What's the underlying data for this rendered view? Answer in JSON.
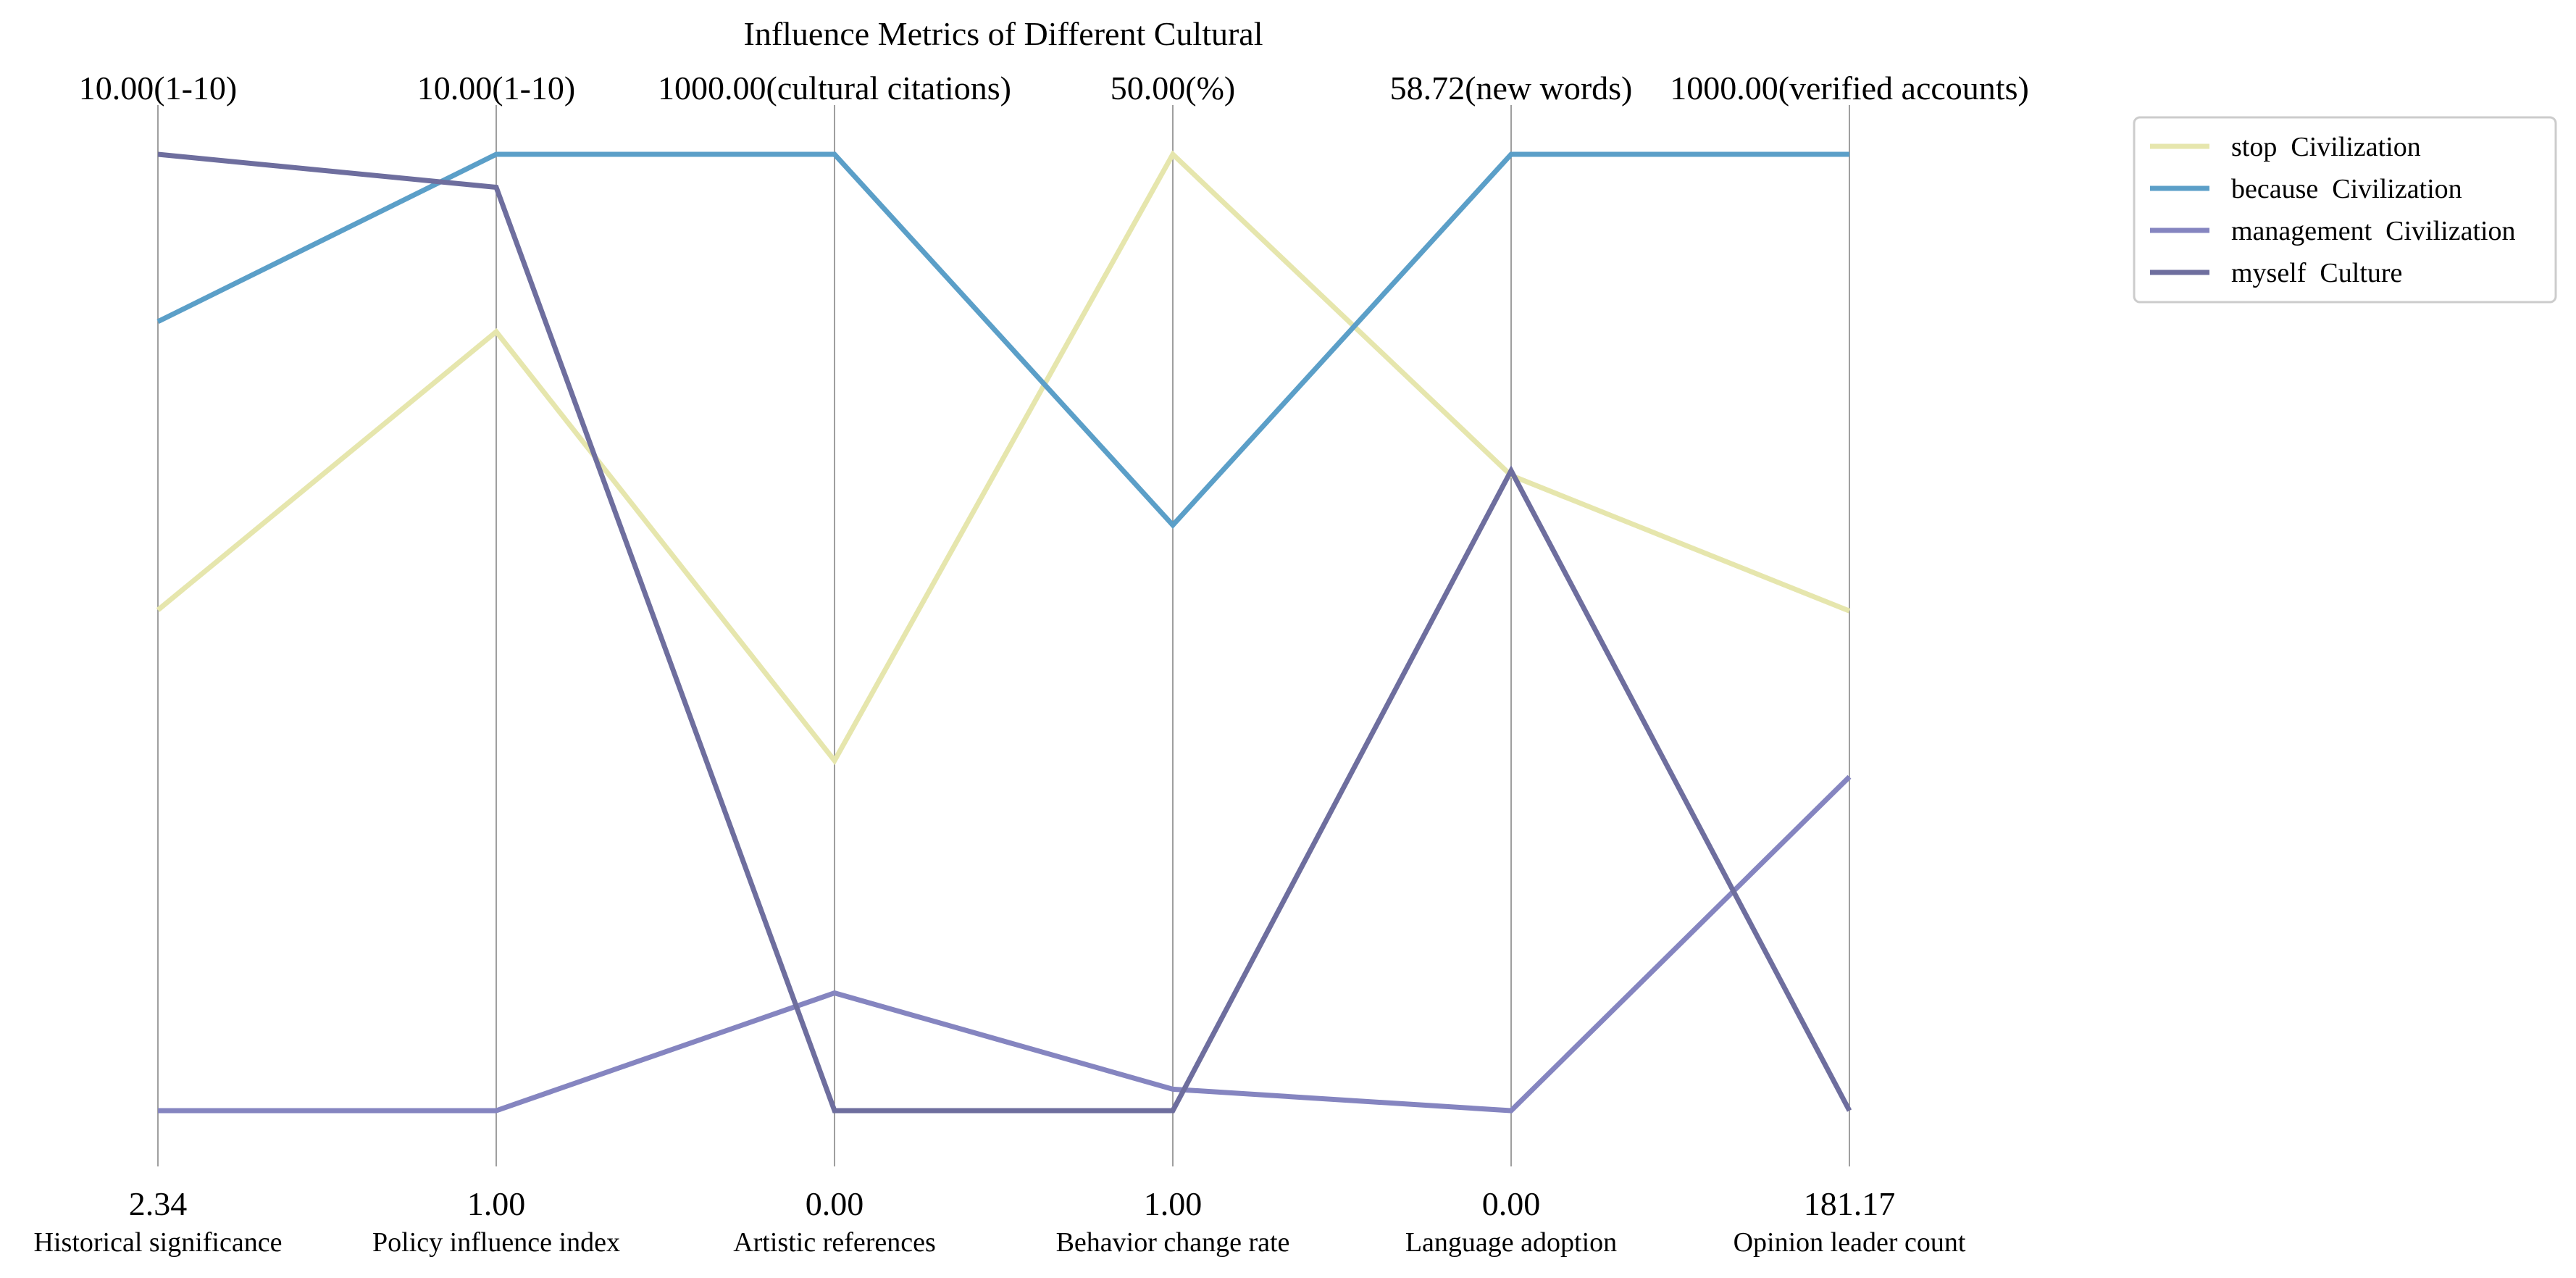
{
  "chart_data": {
    "type": "parallel-coordinates",
    "title": "Influence Metrics of Different Cultural",
    "axes": [
      {
        "name": "Historical significance",
        "min": 2.34,
        "max": 10.0,
        "min_label": "2.34",
        "max_label": "10.00(1-10)"
      },
      {
        "name": "Policy influence index",
        "min": 1.0,
        "max": 10.0,
        "min_label": "1.00",
        "max_label": "10.00(1-10)"
      },
      {
        "name": "Artistic references",
        "min": 0.0,
        "max": 1000.0,
        "min_label": "0.00",
        "max_label": "1000.00(cultural citations)"
      },
      {
        "name": "Behavior change rate",
        "min": 1.0,
        "max": 50.0,
        "min_label": "1.00",
        "max_label": "50.00(%)"
      },
      {
        "name": "Language adoption",
        "min": 0.0,
        "max": 58.72,
        "min_label": "0.00",
        "max_label": "58.72(new words)"
      },
      {
        "name": "Opinion leader count",
        "min": 181.17,
        "max": 1000.0,
        "min_label": "181.17",
        "max_label": "1000.00(verified accounts)"
      }
    ],
    "series": [
      {
        "name": "stop  Civilization",
        "color": "#e6e6ad",
        "values": [
          6.35,
          8.33,
          366,
          50.0,
          39.0,
          609
        ]
      },
      {
        "name": "because  Civilization",
        "color": "#5b9fc8",
        "values": [
          8.66,
          10.0,
          1000,
          31.0,
          58.72,
          1000
        ]
      },
      {
        "name": "management  Civilization",
        "color": "#8585c0",
        "values": [
          2.34,
          1.0,
          123,
          2.1,
          0.0,
          467
        ]
      },
      {
        "name": "myself  Culture",
        "color": "#6e6e9e",
        "values": [
          10.0,
          9.69,
          0,
          1.0,
          39.3,
          181.17
        ]
      }
    ],
    "legend_position": "top-right",
    "grid": false
  }
}
